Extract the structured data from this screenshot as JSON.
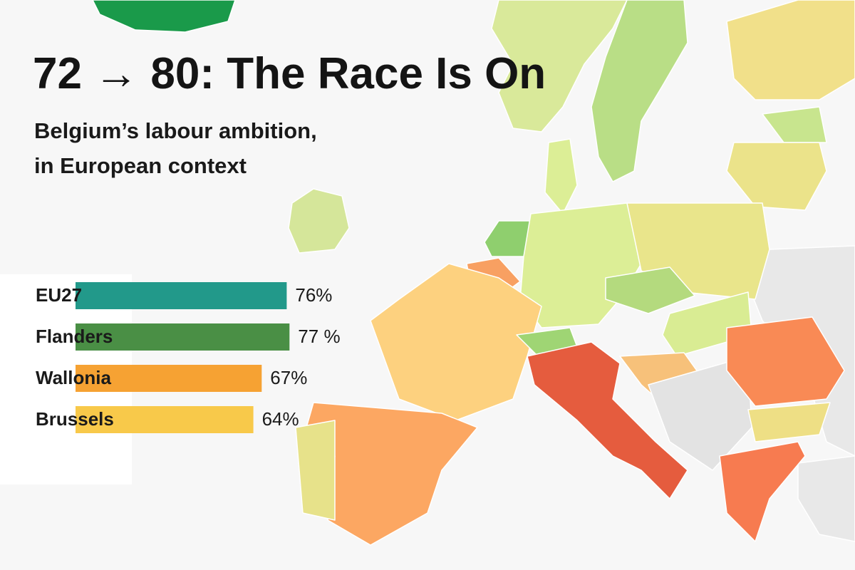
{
  "chart_data": {
    "type": "bar",
    "title": "72 → 80: The Race Is On",
    "subtitle": [
      "Belgium’s labour ambition,",
      "in European context"
    ],
    "categories": [
      "EU27",
      "Flanders",
      "Wallonia",
      "Brussels"
    ],
    "values": [
      76,
      77,
      67,
      64
    ],
    "value_labels": [
      "76%",
      "77 %",
      "67%",
      "64%"
    ],
    "colors": [
      "#22998a",
      "#4a8f45",
      "#f6a233",
      "#f8c94a"
    ]
  }
}
